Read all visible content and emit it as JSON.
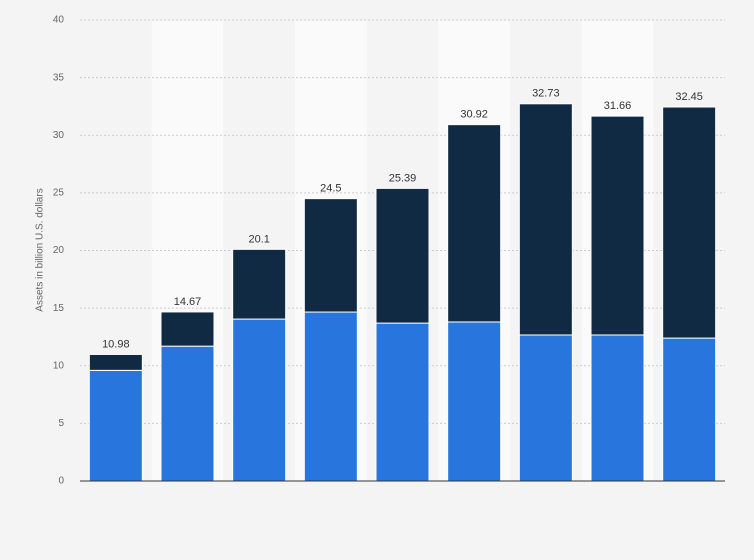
{
  "chart_data": {
    "type": "stacked_bar",
    "y_label": "Assets in billion U.S. dollars",
    "categories": [
      null,
      null,
      null,
      null,
      null,
      null,
      null,
      null,
      null
    ],
    "series": [
      {
        "color": "#2876dd",
        "values": [
          9.6,
          11.7,
          14.05,
          14.66,
          13.7,
          13.8,
          12.67,
          12.67,
          12.4
        ]
      },
      {
        "color": "#0f2a42",
        "values": [
          1.38,
          2.97,
          6.05,
          9.84,
          11.69,
          17.12,
          20.06,
          18.99,
          20.05
        ]
      }
    ],
    "totals": [
      10.98,
      14.67,
      20.1,
      24.5,
      25.39,
      30.92,
      32.73,
      31.66,
      32.45
    ],
    "ylim": [
      0,
      40
    ],
    "yticks": [
      0,
      5,
      10,
      15,
      20,
      25,
      30,
      35,
      40
    ],
    "grid": true
  }
}
